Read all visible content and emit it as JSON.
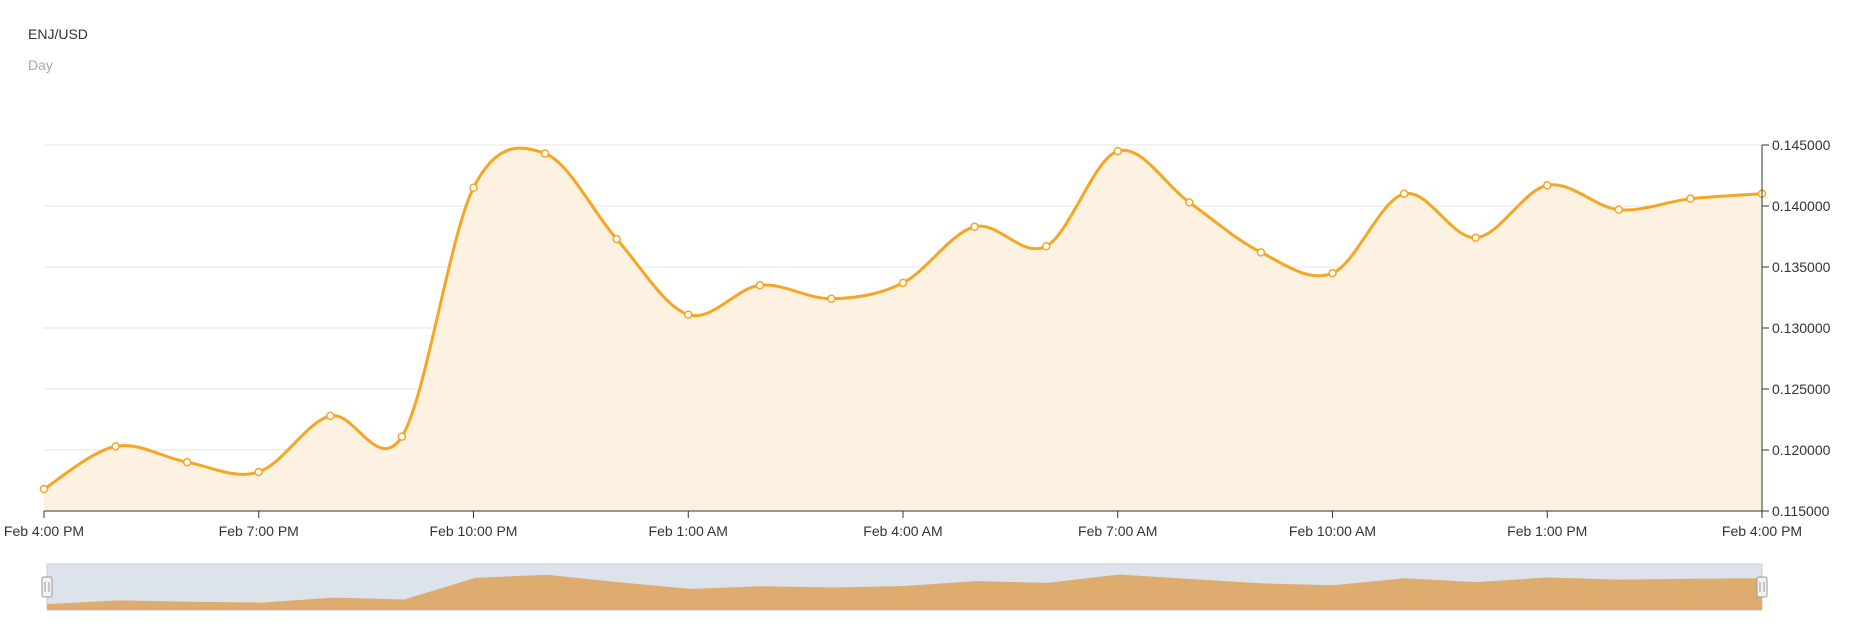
{
  "chart_data": {
    "type": "area",
    "title": "ENJ/USD",
    "subtitle": "Day",
    "x_tick_labels": [
      "Feb 4:00 PM",
      "Feb 7:00 PM",
      "Feb 10:00 PM",
      "Feb 1:00 AM",
      "Feb 4:00 AM",
      "Feb 7:00 AM",
      "Feb 10:00 AM",
      "Feb 1:00 PM",
      "Feb 4:00 PM"
    ],
    "y_tick_labels": [
      "0.115000",
      "0.120000",
      "0.125000",
      "0.130000",
      "0.135000",
      "0.140000",
      "0.145000"
    ],
    "ylim": [
      0.115,
      0.145
    ],
    "y_axis_position": "right",
    "grid": true,
    "series": [
      {
        "values": [
          0.1168,
          0.1203,
          0.119,
          0.1182,
          0.1228,
          0.1211,
          0.1415,
          0.1443,
          0.1373,
          0.1311,
          0.1335,
          0.1324,
          0.1337,
          0.1383,
          0.1367,
          0.1445,
          0.1403,
          0.1362,
          0.1345,
          0.141,
          0.1374,
          0.1417,
          0.1397,
          0.1406,
          0.141
        ]
      }
    ],
    "colors": {
      "line": "#f5a623",
      "area": "#fdf1e1",
      "marker_fill": "#ffffff",
      "navigator_area": "#deac6e",
      "navigator_bg": "#dde3ea"
    },
    "navigator": true
  }
}
